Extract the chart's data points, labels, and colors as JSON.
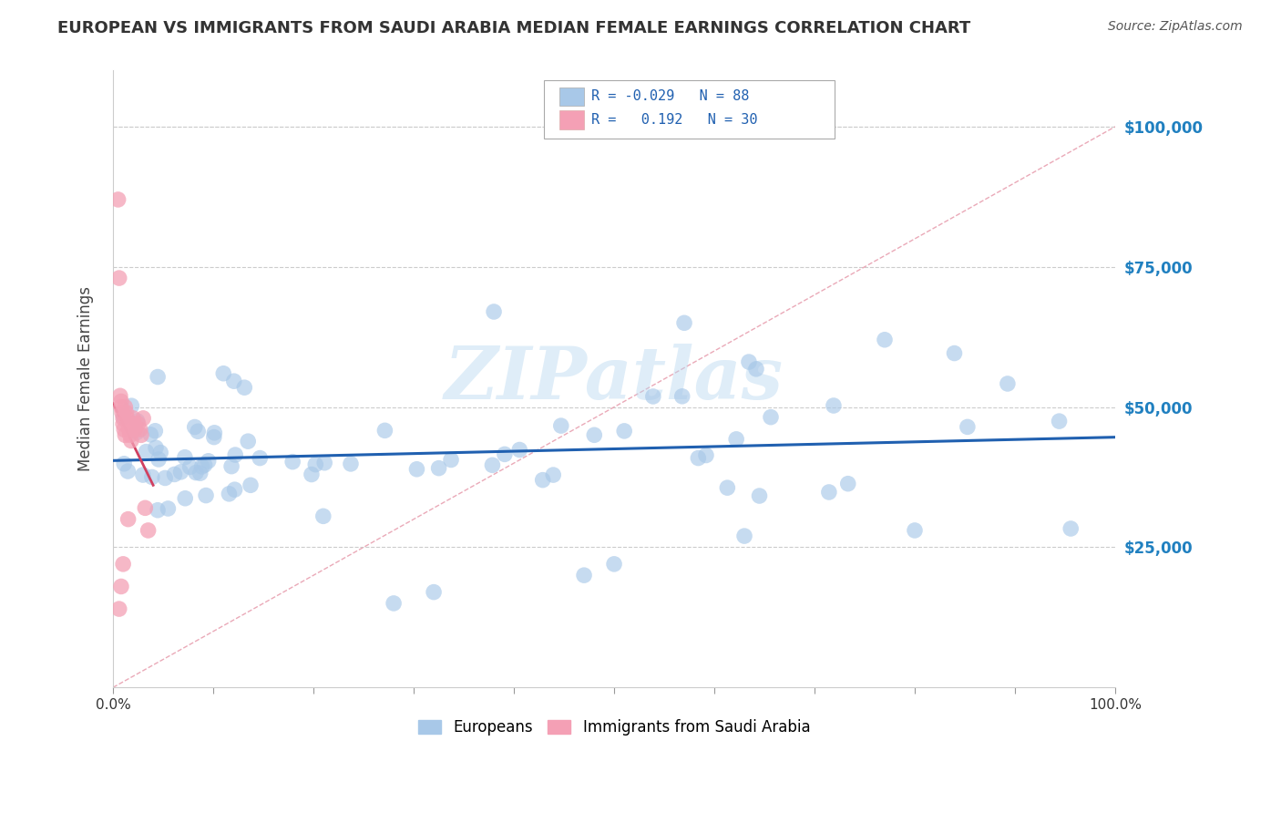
{
  "title": "EUROPEAN VS IMMIGRANTS FROM SAUDI ARABIA MEDIAN FEMALE EARNINGS CORRELATION CHART",
  "source": "Source: ZipAtlas.com",
  "ylabel": "Median Female Earnings",
  "xlim": [
    0.0,
    1.0
  ],
  "ylim": [
    0,
    110000
  ],
  "watermark": "ZIPatlas",
  "blue_color": "#a8c8e8",
  "pink_color": "#f4a0b5",
  "blue_line_color": "#2060b0",
  "pink_line_color": "#d04060",
  "diag_line_color": "#e8a0b0",
  "background_color": "#ffffff",
  "grid_color": "#cccccc",
  "ytick_color": "#2080c0",
  "xtick_color": "#333333",
  "title_color": "#333333",
  "source_color": "#555555",
  "legend_text_color": "#2060b0"
}
